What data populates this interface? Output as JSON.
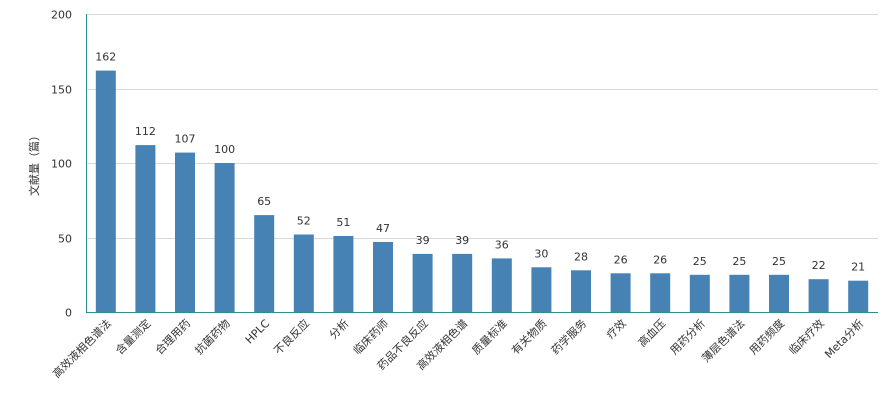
{
  "chart_data": {
    "type": "bar",
    "title": "",
    "xlabel": "",
    "ylabel": "文献量（篇）",
    "ylim": [
      0,
      200
    ],
    "yticks": [
      0,
      50,
      100,
      150,
      200
    ],
    "grid": true,
    "bar_color": "#4682B4",
    "categories": [
      "高效液相色谱法",
      "含量测定",
      "合理用药",
      "抗菌药物",
      "HPLC",
      "不良反应",
      "分析",
      "临床药师",
      "药品不良反应",
      "高效液相色谱",
      "质量标准",
      "有关物质",
      "药学服务",
      "疗效",
      "高血压",
      "用药分析",
      "薄层色谱法",
      "用药频度",
      "临床疗效",
      "Meta分析"
    ],
    "values": [
      162,
      112,
      107,
      100,
      65,
      52,
      51,
      47,
      39,
      39,
      36,
      30,
      28,
      26,
      26,
      25,
      25,
      25,
      22,
      21
    ]
  }
}
